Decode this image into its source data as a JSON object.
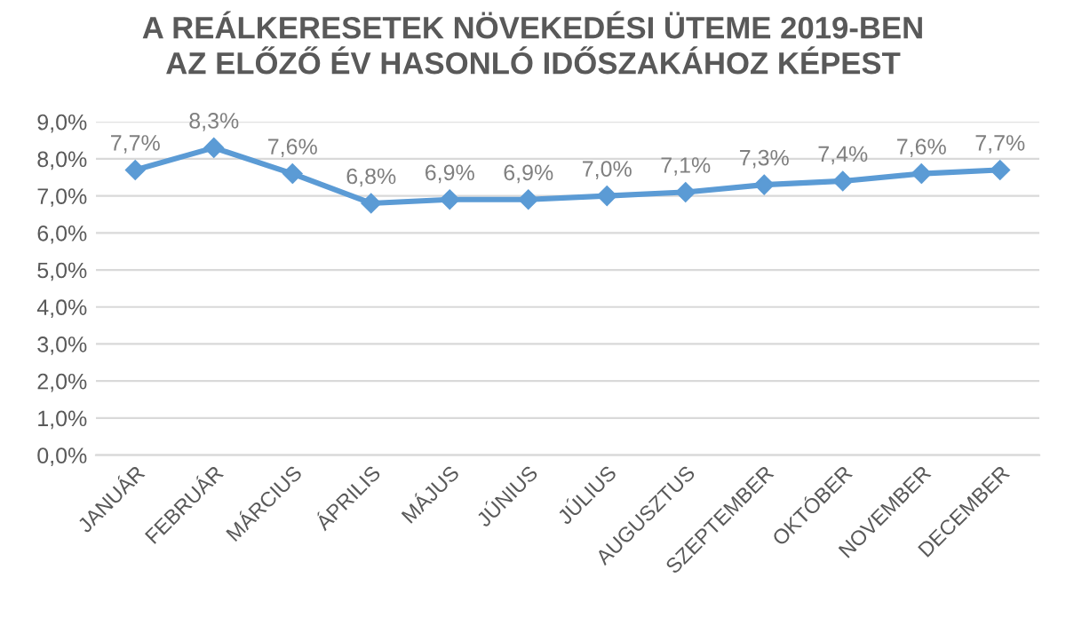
{
  "chart_data": {
    "type": "line",
    "title": "A REÁLKERESETEK NÖVEKEDÉSI ÜTEME 2019-BEN\nAZ ELŐZŐ ÉV HASONLÓ IDŐSZAKÁHOZ KÉPEST",
    "categories": [
      "JANUÁR",
      "FEBRUÁR",
      "MÁRCIUS",
      "ÁPRILIS",
      "MÁJUS",
      "JÚNIUS",
      "JÚLIUS",
      "AUGUSZTUS",
      "SZEPTEMBER",
      "OKTÓBER",
      "NOVEMBER",
      "DECEMBER"
    ],
    "series": [
      {
        "color": "#5b9bd5",
        "values": [
          7.7,
          8.3,
          7.6,
          6.8,
          6.9,
          6.9,
          7.0,
          7.1,
          7.3,
          7.4,
          7.6,
          7.7
        ],
        "value_labels": [
          "7,7%",
          "8,3%",
          "7,6%",
          "6,8%",
          "6,9%",
          "6,9%",
          "7,0%",
          "7,1%",
          "7,3%",
          "7,4%",
          "7,6%",
          "7,7%"
        ]
      }
    ],
    "ylim": [
      0,
      9
    ],
    "yticks": [
      {
        "value": 0,
        "label": "0,0%"
      },
      {
        "value": 1,
        "label": "1,0%"
      },
      {
        "value": 2,
        "label": "2,0%"
      },
      {
        "value": 3,
        "label": "3,0%"
      },
      {
        "value": 4,
        "label": "4,0%"
      },
      {
        "value": 5,
        "label": "5,0%"
      },
      {
        "value": 6,
        "label": "6,0%"
      },
      {
        "value": 7,
        "label": "7,0%"
      },
      {
        "value": 8,
        "label": "8,0%"
      },
      {
        "value": 9,
        "label": "9,0%"
      }
    ],
    "grid": "y",
    "marker": "diamond",
    "line_style": "solid"
  }
}
